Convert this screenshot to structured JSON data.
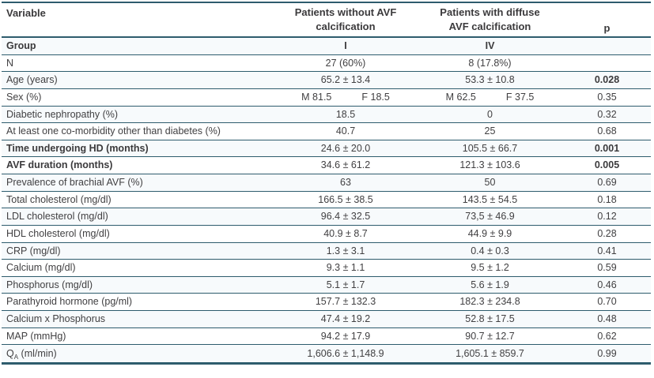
{
  "colors": {
    "line": "#2e5c6d",
    "text": "#414042",
    "stripe": "#f7fafc"
  },
  "table": {
    "header": {
      "col1": "Variable",
      "col2_line1": "Patients without AVF",
      "col2_line2": "calcification",
      "col3_line1": "Patients with diffuse",
      "col3_line2": "AVF calcification",
      "col4": "p"
    },
    "rows": [
      {
        "label": "Group",
        "v1": "I",
        "v2": "IV",
        "p": "",
        "label_bold": true,
        "values_bold": true
      },
      {
        "label": "N",
        "v1": "27 (60%)",
        "v2": "8 (17.8%)",
        "p": ""
      },
      {
        "label": "Age (years)",
        "v1": "65.2 ± 13.4",
        "v2": "53.3 ± 10.8",
        "p": "0.028",
        "p_bold": true
      },
      {
        "label": "Sex (%)",
        "v1": [
          "M 81.5",
          "F 18.5"
        ],
        "v2": [
          "M 62.5",
          "F 37.5"
        ],
        "p": "0.35"
      },
      {
        "label": "Diabetic nephropathy (%)",
        "v1": "18.5",
        "v2": "0",
        "p": "0.32"
      },
      {
        "label": "At least one co-morbidity other than diabetes (%)",
        "v1": "40.7",
        "v2": "25",
        "p": "0.68"
      },
      {
        "label": "Time undergoing HD (months)",
        "v1": "24.6 ± 20.0",
        "v2": "105.5 ± 66.7",
        "p": "0.001",
        "label_bold": true,
        "p_bold": true
      },
      {
        "label": "AVF duration (months)",
        "v1": "34.6 ± 61.2",
        "v2": "121.3 ± 103.6",
        "p": "0.005",
        "label_bold": true,
        "p_bold": true
      },
      {
        "label": "Prevalence of brachial AVF (%)",
        "v1": "63",
        "v2": "50",
        "p": "0.69"
      },
      {
        "label": "Total cholesterol (mg/dl)",
        "v1": "166.5 ± 38.5",
        "v2": "143.5 ± 54.5",
        "p": "0.18"
      },
      {
        "label": "LDL cholesterol (mg/dl)",
        "v1": "96.4 ± 32.5",
        "v2": "73,5 ± 46.9",
        "p": "0.12"
      },
      {
        "label": "HDL cholesterol (mg/dl)",
        "v1": "40.9 ± 8.7",
        "v2": "44.9 ± 9.9",
        "p": "0.28"
      },
      {
        "label": "CRP (mg/dl)",
        "v1": "1.3 ± 3.1",
        "v2": "0.4 ± 0.3",
        "p": "0.41"
      },
      {
        "label": "Calcium (mg/dl)",
        "v1": "9.3 ± 1.1",
        "v2": "9.5 ± 1.2",
        "p": "0.59"
      },
      {
        "label": "Phosphorus (mg/dl)",
        "v1": "5.1 ± 1.7",
        "v2": "5.6 ± 1.9",
        "p": "0.46"
      },
      {
        "label": "Parathyroid hormone (pg/ml)",
        "v1": "157.7 ± 132.3",
        "v2": "182.3 ± 234.8",
        "p": "0.70"
      },
      {
        "label": "Calcium x Phosphorus",
        "v1": "47.4 ± 19.2",
        "v2": "52.8 ± 17.5",
        "p": "0.48"
      },
      {
        "label": "MAP (mmHg)",
        "v1": "94.2 ± 17.9",
        "v2": "90.7 ± 12.7",
        "p": "0.62"
      },
      {
        "label_parts": [
          {
            "t": "Q"
          },
          {
            "t": "A",
            "sub": true
          },
          {
            "t": " (ml/min)"
          }
        ],
        "v1": "1,606.6 ± 1,148.9",
        "v2": "1,605.1 ± 859.7",
        "p": "0.99"
      }
    ]
  }
}
